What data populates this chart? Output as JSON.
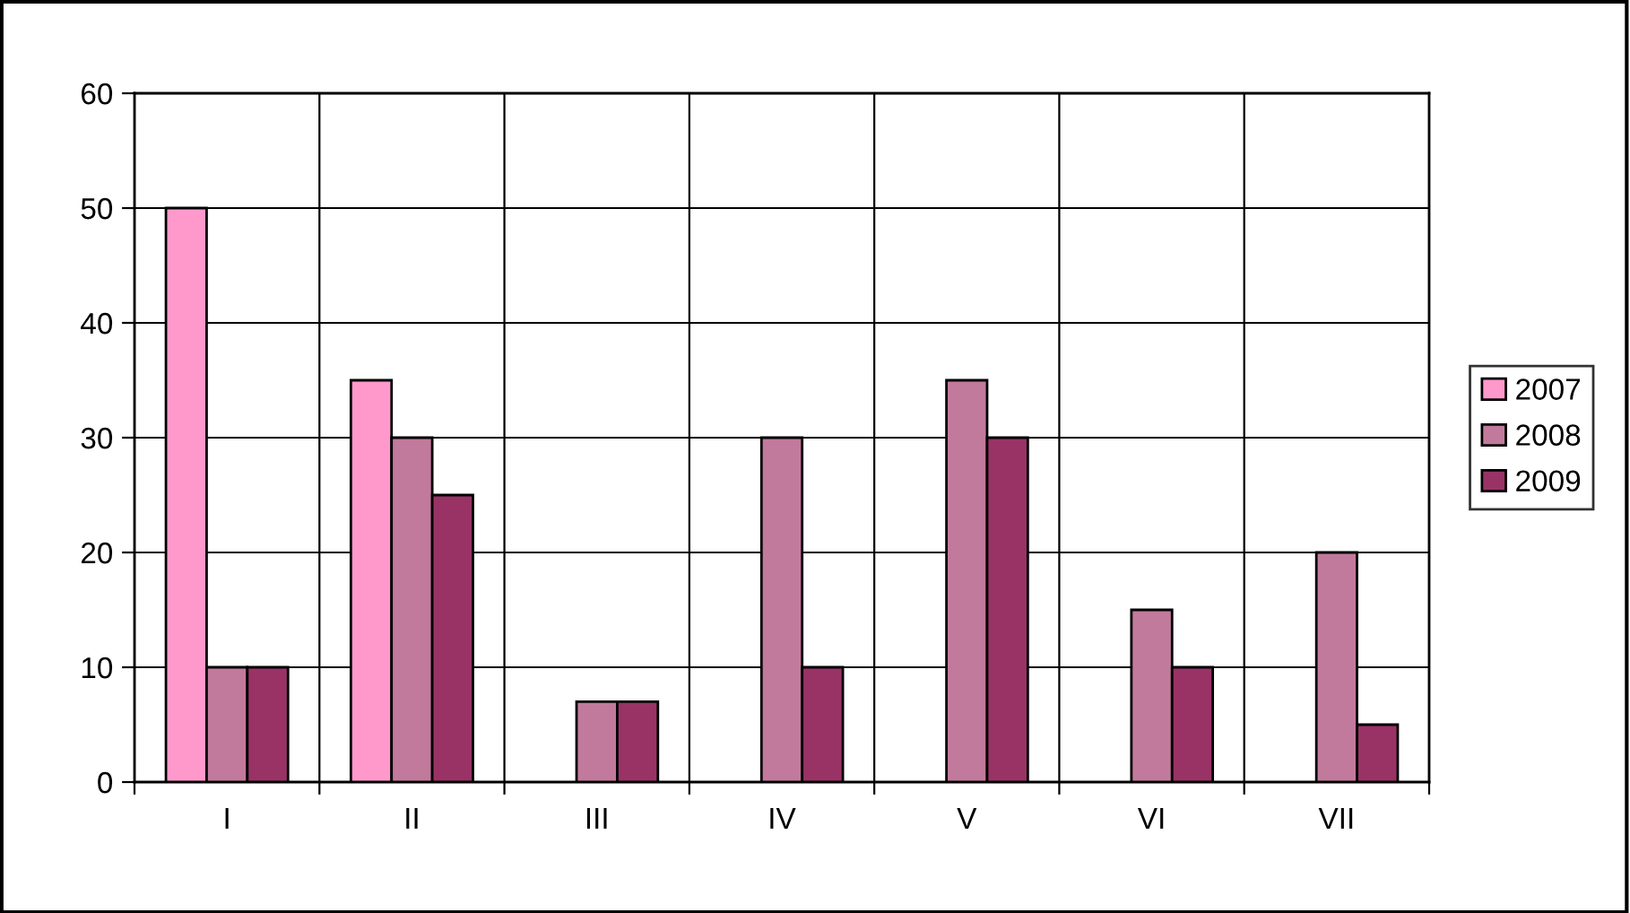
{
  "chart_data": {
    "type": "bar",
    "categories": [
      "I",
      "II",
      "III",
      "IV",
      "V",
      "VI",
      "VII"
    ],
    "series": [
      {
        "name": "2007",
        "color": "#ff99cc",
        "values": [
          50,
          35,
          null,
          null,
          null,
          null,
          null
        ]
      },
      {
        "name": "2008",
        "color": "#c27a9c",
        "values": [
          10,
          30,
          7,
          30,
          35,
          15,
          20
        ]
      },
      {
        "name": "2009",
        "color": "#993366",
        "values": [
          10,
          25,
          7,
          10,
          30,
          10,
          5
        ]
      }
    ],
    "ylim": [
      0,
      60
    ],
    "yticks": [
      0,
      10,
      20,
      30,
      40,
      50,
      60
    ],
    "grid": true,
    "legend": "right"
  }
}
